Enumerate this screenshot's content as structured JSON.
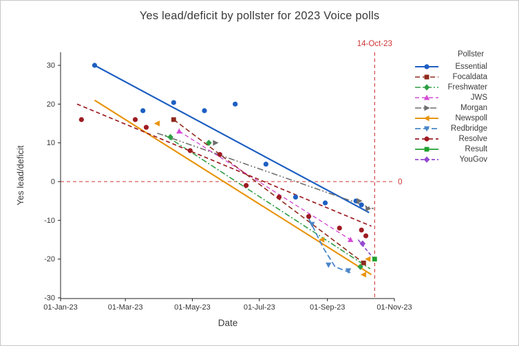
{
  "title": "Yes lead/deficit by pollster for 2023 Voice polls",
  "axes": {
    "x_label": "Date",
    "y_label": "Yes lead/deficit",
    "x_tick_labels": [
      "01-Jan-23",
      "01-Mar-23",
      "01-May-23",
      "01-Jul-23",
      "01-Sep-23",
      "01-Nov-23"
    ],
    "y_tick_labels": [
      "30",
      "20",
      "10",
      "0",
      "-10",
      "-20",
      "-30"
    ]
  },
  "legend": {
    "title": "Pollster",
    "position": "right"
  },
  "annotations": {
    "vline_label": "14-Oct-23",
    "hline_label": "0"
  },
  "colors": {
    "reference_line": "#cc3333",
    "axis": "#222222",
    "tick_text": "#333333"
  },
  "chart_data": {
    "type": "scatter",
    "title": "Yes lead/deficit by pollster for 2023 Voice polls",
    "xlabel": "Date",
    "ylabel": "Yes lead/deficit",
    "grid": false,
    "legend_position": "right",
    "x_range": [
      "2023-01-01",
      "2023-11-01"
    ],
    "ylim": [
      -31,
      33
    ],
    "x_ticks": [
      "2023-01-01",
      "2023-03-01",
      "2023-05-01",
      "2023-07-01",
      "2023-09-01",
      "2023-11-01"
    ],
    "x_tick_labels": [
      "01-Jan-23",
      "01-Mar-23",
      "01-May-23",
      "01-Jul-23",
      "01-Sep-23",
      "01-Nov-23"
    ],
    "y_ticks": [
      30,
      20,
      10,
      0,
      -10,
      -20,
      -30
    ],
    "reference_lines": {
      "horizontal": {
        "y": 0,
        "label": "0"
      },
      "vertical": {
        "date": "2023-10-14",
        "label": "14-Oct-23"
      }
    },
    "series": [
      {
        "name": "Essential",
        "color": "#1d5fc2",
        "marker": "circle",
        "dash": "none",
        "line_width": 2.2,
        "points": [
          [
            "2023-02-01",
            30
          ],
          [
            "2023-03-17",
            18.3
          ],
          [
            "2023-04-14",
            20.4
          ],
          [
            "2023-05-12",
            18.3
          ],
          [
            "2023-06-09",
            20
          ],
          [
            "2023-07-07",
            4.5
          ],
          [
            "2023-08-03",
            -4
          ],
          [
            "2023-08-30",
            -5.5
          ],
          [
            "2023-09-27",
            -5
          ],
          [
            "2023-10-02",
            -6
          ]
        ],
        "trend": [
          [
            "2023-02-01",
            30
          ],
          [
            "2023-10-09",
            -8
          ]
        ]
      },
      {
        "name": "Focaldata",
        "color": "#8e2a1d",
        "marker": "square",
        "dash": "7 4",
        "line_width": 1.6,
        "points": [
          [
            "2023-04-14",
            16
          ],
          [
            "2023-10-04",
            -21
          ]
        ],
        "trend": [
          [
            "2023-04-14",
            16
          ],
          [
            "2023-10-04",
            -21
          ]
        ]
      },
      {
        "name": "Freshwater",
        "color": "#2f9e44",
        "marker": "diamond",
        "dash": "8 3 2 3",
        "line_width": 1.6,
        "points": [
          [
            "2023-04-11",
            11.5
          ],
          [
            "2023-05-16",
            10
          ],
          [
            "2023-10-01",
            -22
          ]
        ],
        "trend": [
          [
            "2023-04-06",
            12
          ],
          [
            "2023-10-10",
            -22.5
          ]
        ]
      },
      {
        "name": "JWS",
        "color": "#d44bd4",
        "marker": "triangle-up",
        "dash": "6 4",
        "line_width": 1.4,
        "points": [
          [
            "2023-04-19",
            13
          ],
          [
            "2023-09-22",
            -15
          ]
        ],
        "trend": [
          [
            "2023-04-19",
            13
          ],
          [
            "2023-09-22",
            -15
          ]
        ]
      },
      {
        "name": "Morgan",
        "color": "#6f6f6f",
        "marker": "triangle-right",
        "dash": "9 3 2 3 2 3",
        "line_width": 1.6,
        "points": [
          [
            "2023-05-22",
            10
          ],
          [
            "2023-09-30",
            -5
          ],
          [
            "2023-10-08",
            -7
          ]
        ],
        "trend": [
          [
            "2023-03-30",
            12.5
          ],
          [
            "2023-10-13",
            -7
          ]
        ]
      },
      {
        "name": "Newspoll",
        "color": "#e8950f",
        "marker": "triangle-left",
        "dash": "none",
        "line_width": 2.2,
        "points": [
          [
            "2023-03-30",
            15
          ],
          [
            "2023-08-27",
            -15
          ],
          [
            "2023-10-04",
            -24
          ],
          [
            "2023-10-08",
            -20
          ]
        ],
        "trend": [
          [
            "2023-02-01",
            21
          ],
          [
            "2023-10-11",
            -24
          ]
        ]
      },
      {
        "name": "Redbridge",
        "color": "#4a86c8",
        "marker": "triangle-down",
        "dash": "8 4",
        "line_width": 1.8,
        "points": [
          [
            "2023-08-18",
            -11
          ],
          [
            "2023-09-02",
            -21.5
          ],
          [
            "2023-09-20",
            -23
          ]
        ],
        "trend": [
          [
            "2023-08-15",
            -9.5
          ],
          [
            "2023-08-28",
            -17
          ],
          [
            "2023-09-08",
            -22
          ],
          [
            "2023-09-22",
            -23.5
          ]
        ]
      },
      {
        "name": "Resolve",
        "color": "#9e1c22",
        "marker": "circle",
        "dash": "6 4",
        "line_width": 1.7,
        "points": [
          [
            "2023-01-20",
            16
          ],
          [
            "2023-03-10",
            16
          ],
          [
            "2023-03-20",
            14
          ],
          [
            "2023-04-29",
            8
          ],
          [
            "2023-05-26",
            7
          ],
          [
            "2023-06-19",
            -1
          ],
          [
            "2023-07-19",
            -4
          ],
          [
            "2023-08-15",
            -9
          ],
          [
            "2023-09-12",
            -12
          ],
          [
            "2023-10-02",
            -12.5
          ],
          [
            "2023-10-06",
            -14
          ]
        ],
        "trend": [
          [
            "2023-01-16",
            20
          ],
          [
            "2023-10-11",
            -11.5
          ]
        ]
      },
      {
        "name": "Result",
        "color": "#1fa12e",
        "marker": "square",
        "dash": "none",
        "line_width": 1.8,
        "points": [
          [
            "2023-10-14",
            -20
          ]
        ],
        "trend": []
      },
      {
        "name": "YouGov",
        "color": "#9349cf",
        "marker": "diamond",
        "dash": "5 3",
        "line_width": 1.7,
        "points": [
          [
            "2023-10-03",
            -16
          ]
        ],
        "trend": [
          [
            "2023-09-29",
            -15
          ],
          [
            "2023-10-12",
            -19.5
          ]
        ]
      }
    ]
  }
}
